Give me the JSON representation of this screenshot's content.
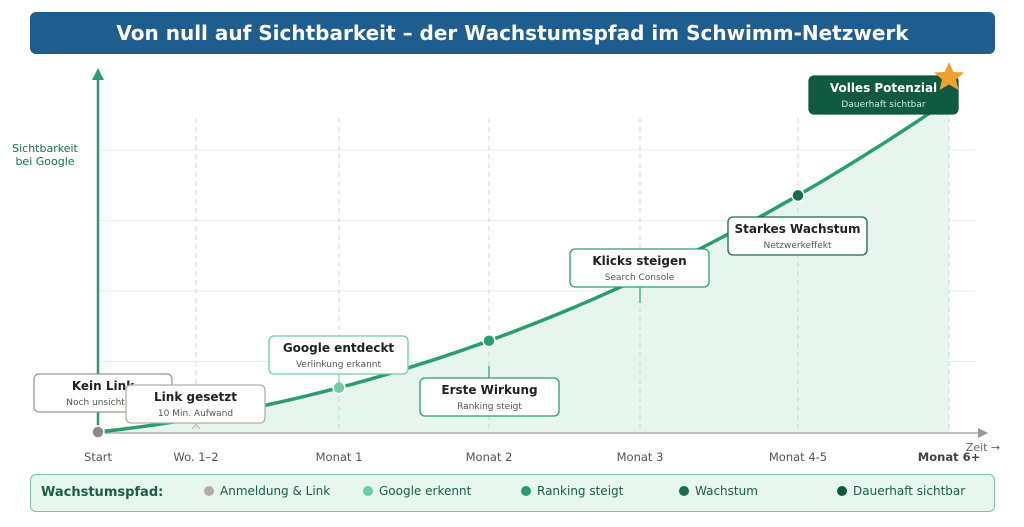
{
  "title": "Von null auf Sichtbarkeit – der Wachstumspfad im Schwimm-Netzwerk",
  "chart_data": {
    "type": "line",
    "ylabel": "Sichtbarkeit\nbei Google",
    "xlabel": "Zeit →",
    "grid": true,
    "categories": [
      "Start",
      "Wo. 1–2",
      "Monat 1",
      "Monat 2",
      "Monat 3",
      "Monat 4-5",
      "Monat 6+"
    ],
    "ylim": [
      0,
      100
    ],
    "points": [
      {
        "stage": "Start",
        "value": 0,
        "label": "Kein Link",
        "sub": "Noch unsichtbar",
        "color": "#8c8a85"
      },
      {
        "stage": "Wo. 1–2",
        "value": null,
        "label": "Link gesetzt",
        "sub": "10 Min. Aufwand",
        "color": "#b5ada5"
      },
      {
        "stage": "Monat 1",
        "value": 12.5,
        "label": "Google entdeckt",
        "sub": "Verlinkung erkannt",
        "color": "#6fcca3"
      },
      {
        "stage": "Monat 2",
        "value": 20.5,
        "label": "Erste Wirkung",
        "sub": "Ranking steigt",
        "color": "#2a9d70"
      },
      {
        "stage": "Monat 3",
        "value": 38,
        "label": "Klicks steigen",
        "sub": "Search Console",
        "color": "#2a9d70"
      },
      {
        "stage": "Monat 4-5",
        "value": 70,
        "label": "Starkes Wachstum",
        "sub": "Netzwerkeffekt",
        "color": "#1b6b4f"
      },
      {
        "stage": "Monat 6+",
        "value": 100,
        "label": "Volles Potenzial",
        "sub": "Dauerhaft sichtbar",
        "color": "#0f5a40"
      }
    ]
  },
  "legend": {
    "title": "Wachstumspfad:",
    "items": [
      {
        "label": "Anmeldung & Link",
        "color": "#b5ada5"
      },
      {
        "label": "Google erkennt",
        "color": "#6fcca3"
      },
      {
        "label": "Ranking steigt",
        "color": "#2a9d70"
      },
      {
        "label": "Wachstum",
        "color": "#1b6b4f"
      },
      {
        "label": "Dauerhaft sichtbar",
        "color": "#0f5a40"
      }
    ]
  },
  "colors": {
    "line": "#2a9d70",
    "area": "#e6f5ee",
    "accent": "#1f5d8f",
    "star": "#f0a030"
  }
}
